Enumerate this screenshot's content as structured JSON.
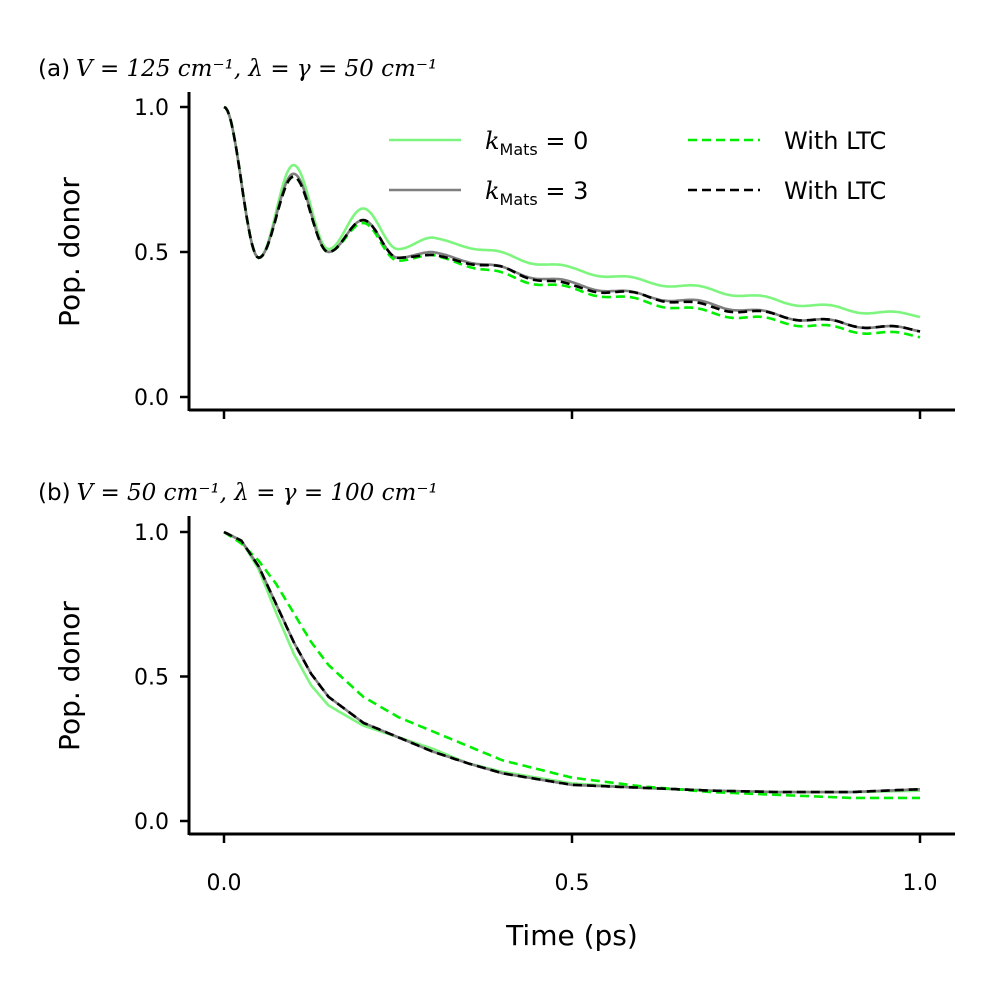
{
  "chart_data": [
    {
      "type": "line",
      "title_prefix": "(a)",
      "title_math": "V = 125 cm⁻¹,  λ = γ = 50 cm⁻¹",
      "xlabel": "",
      "ylabel": "Pop. donor",
      "xlim": [
        -0.05,
        1.05
      ],
      "ylim": [
        -0.05,
        1.05
      ],
      "xticks": [
        0.0,
        0.5,
        1.0
      ],
      "xtick_labels_visible": false,
      "yticks": [
        0.0,
        0.5,
        1.0
      ],
      "ytick_labels": [
        "0.0",
        "0.5",
        "1.0"
      ],
      "legend": {
        "position": "top-right",
        "columns": 2
      },
      "series": [
        {
          "name": "k_Mats = 0",
          "label_base": "k",
          "label_sub": "Mats",
          "label_rest": " = 0",
          "color": "#7ef57e",
          "style": "solid",
          "x": [
            0.0,
            0.05,
            0.1,
            0.15,
            0.2,
            0.25,
            0.3,
            0.4,
            0.5,
            0.6,
            0.7,
            0.8,
            0.9,
            1.0
          ],
          "y": [
            1.0,
            0.48,
            0.8,
            0.51,
            0.65,
            0.51,
            0.55,
            0.49,
            0.44,
            0.4,
            0.37,
            0.33,
            0.3,
            0.28
          ],
          "osc_amp": [
            0.0,
            0.0,
            0.0,
            0.0,
            0.0,
            0.0,
            0.0,
            0.01,
            0.008,
            0.008,
            0.008,
            0.008,
            0.008,
            0.006
          ]
        },
        {
          "name": "k_Mats = 3",
          "label_base": "k",
          "label_sub": "Mats",
          "label_rest": " = 3",
          "color": "#7f7f7f",
          "style": "solid",
          "x": [
            0.0,
            0.05,
            0.1,
            0.15,
            0.2,
            0.25,
            0.3,
            0.4,
            0.5,
            0.6,
            0.7,
            0.8,
            0.9,
            1.0
          ],
          "y": [
            1.0,
            0.48,
            0.77,
            0.5,
            0.61,
            0.48,
            0.5,
            0.44,
            0.39,
            0.35,
            0.32,
            0.28,
            0.25,
            0.23
          ],
          "osc_amp": [
            0.0,
            0.0,
            0.0,
            0.0,
            0.0,
            0.0,
            0.0,
            0.01,
            0.008,
            0.008,
            0.008,
            0.008,
            0.008,
            0.006
          ]
        },
        {
          "name": "With LTC",
          "label_base": "With LTC",
          "color": "#00ee00",
          "style": "dashed",
          "x": [
            0.0,
            0.05,
            0.1,
            0.15,
            0.2,
            0.25,
            0.3,
            0.4,
            0.5,
            0.6,
            0.7,
            0.8,
            0.9,
            1.0
          ],
          "y": [
            1.0,
            0.48,
            0.76,
            0.5,
            0.6,
            0.47,
            0.49,
            0.42,
            0.37,
            0.33,
            0.29,
            0.26,
            0.23,
            0.21
          ],
          "osc_amp": [
            0.0,
            0.0,
            0.0,
            0.0,
            0.0,
            0.0,
            0.0,
            0.01,
            0.008,
            0.008,
            0.008,
            0.008,
            0.008,
            0.006
          ]
        },
        {
          "name": "With LTC",
          "label_base": "With LTC",
          "color": "#000000",
          "style": "dashed",
          "x": [
            0.0,
            0.05,
            0.1,
            0.15,
            0.2,
            0.25,
            0.3,
            0.4,
            0.5,
            0.6,
            0.7,
            0.8,
            0.9,
            1.0
          ],
          "y": [
            1.0,
            0.48,
            0.76,
            0.5,
            0.61,
            0.48,
            0.49,
            0.44,
            0.38,
            0.35,
            0.31,
            0.28,
            0.25,
            0.23
          ],
          "osc_amp": [
            0.0,
            0.0,
            0.0,
            0.0,
            0.0,
            0.0,
            0.0,
            0.01,
            0.008,
            0.008,
            0.008,
            0.008,
            0.008,
            0.006
          ]
        }
      ]
    },
    {
      "type": "line",
      "title_prefix": "(b)",
      "title_math": "V = 50 cm⁻¹,  λ = γ = 100 cm⁻¹",
      "xlabel": "Time (ps)",
      "ylabel": "Pop. donor",
      "xlim": [
        -0.05,
        1.05
      ],
      "ylim": [
        -0.05,
        1.05
      ],
      "xticks": [
        0.0,
        0.5,
        1.0
      ],
      "xtick_labels": [
        "0.0",
        "0.5",
        "1.0"
      ],
      "yticks": [
        0.0,
        0.5,
        1.0
      ],
      "ytick_labels": [
        "0.0",
        "0.5",
        "1.0"
      ],
      "series": [
        {
          "name": "k_Mats = 0",
          "color": "#7ef57e",
          "style": "solid",
          "x": [
            0.0,
            0.025,
            0.05,
            0.075,
            0.1,
            0.125,
            0.15,
            0.2,
            0.25,
            0.3,
            0.35,
            0.4,
            0.5,
            0.6,
            0.7,
            0.8,
            0.9,
            1.0
          ],
          "y": [
            1.0,
            0.97,
            0.87,
            0.72,
            0.58,
            0.47,
            0.4,
            0.33,
            0.29,
            0.25,
            0.2,
            0.17,
            0.13,
            0.115,
            0.105,
            0.1,
            0.1,
            0.105
          ]
        },
        {
          "name": "k_Mats = 3",
          "color": "#7f7f7f",
          "style": "solid",
          "x": [
            0.0,
            0.025,
            0.05,
            0.075,
            0.1,
            0.125,
            0.15,
            0.2,
            0.25,
            0.3,
            0.35,
            0.4,
            0.5,
            0.6,
            0.7,
            0.8,
            0.9,
            1.0
          ],
          "y": [
            1.0,
            0.97,
            0.88,
            0.75,
            0.62,
            0.51,
            0.43,
            0.34,
            0.29,
            0.24,
            0.2,
            0.165,
            0.125,
            0.115,
            0.105,
            0.1,
            0.1,
            0.11
          ]
        },
        {
          "name": "With LTC",
          "color": "#00ee00",
          "style": "dashed",
          "x": [
            0.0,
            0.025,
            0.05,
            0.075,
            0.1,
            0.125,
            0.15,
            0.2,
            0.25,
            0.3,
            0.35,
            0.4,
            0.5,
            0.6,
            0.7,
            0.8,
            0.9,
            1.0
          ],
          "y": [
            1.0,
            0.96,
            0.9,
            0.82,
            0.72,
            0.62,
            0.54,
            0.43,
            0.36,
            0.31,
            0.26,
            0.21,
            0.15,
            0.12,
            0.1,
            0.09,
            0.08,
            0.08
          ]
        },
        {
          "name": "With LTC",
          "color": "#000000",
          "style": "dashed",
          "x": [
            0.0,
            0.025,
            0.05,
            0.075,
            0.1,
            0.125,
            0.15,
            0.2,
            0.25,
            0.3,
            0.35,
            0.4,
            0.5,
            0.6,
            0.7,
            0.8,
            0.9,
            1.0
          ],
          "y": [
            1.0,
            0.97,
            0.88,
            0.75,
            0.62,
            0.51,
            0.43,
            0.34,
            0.29,
            0.24,
            0.2,
            0.165,
            0.125,
            0.115,
            0.105,
            0.1,
            0.1,
            0.11
          ]
        }
      ]
    }
  ]
}
